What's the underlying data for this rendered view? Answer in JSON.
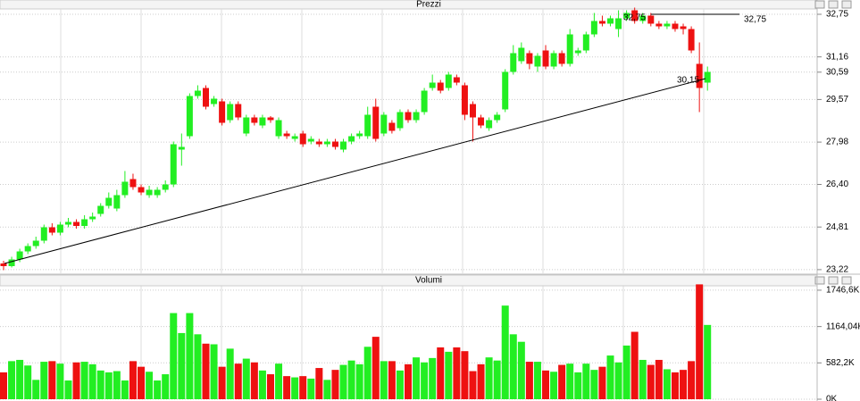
{
  "chart_data": [
    {
      "type": "candlestick",
      "title": "Prezzi",
      "open": [
        23.45,
        23.35,
        23.6,
        23.9,
        24.1,
        24.3,
        24.8,
        24.6,
        24.9,
        25.0,
        24.85,
        25.1,
        25.3,
        25.6,
        25.5,
        26.0,
        26.6,
        26.3,
        26.0,
        26.0,
        26.2,
        26.4,
        27.7,
        28.2,
        29.7,
        30.0,
        29.4,
        29.5,
        28.8,
        29.4,
        28.3,
        28.9,
        28.6,
        28.9,
        28.2,
        28.3,
        28.1,
        28.3,
        28.0,
        28.0,
        27.9,
        28.0,
        27.7,
        28.0,
        28.2,
        28.2,
        29.3,
        28.3,
        28.7,
        28.5,
        29.1,
        28.8,
        29.1,
        30.0,
        30.2,
        30.0,
        30.4,
        30.1,
        29.4,
        28.9,
        28.5,
        28.8,
        29.2,
        30.6,
        31.0,
        31.3,
        30.8,
        31.4,
        30.8,
        31.3,
        30.9,
        31.3,
        31.4,
        32.0,
        32.5,
        32.4,
        32.2,
        32.6,
        32.9,
        32.5,
        32.7,
        32.4,
        32.3,
        32.4,
        32.3,
        32.2,
        30.9,
        30.2
      ],
      "high": [
        23.55,
        23.7,
        24.0,
        24.2,
        24.45,
        24.9,
        24.95,
        25.0,
        25.15,
        25.1,
        25.25,
        25.35,
        25.7,
        26.1,
        26.2,
        26.9,
        26.8,
        26.4,
        26.35,
        26.3,
        26.55,
        28.0,
        28.3,
        29.8,
        30.1,
        30.1,
        29.7,
        29.6,
        29.5,
        29.5,
        29.0,
        29.0,
        29.0,
        28.95,
        28.9,
        28.4,
        28.3,
        28.4,
        28.2,
        28.1,
        28.1,
        28.1,
        28.1,
        28.3,
        28.4,
        29.3,
        29.6,
        29.1,
        28.8,
        29.2,
        29.2,
        29.2,
        30.0,
        30.5,
        30.3,
        30.6,
        30.5,
        30.2,
        29.5,
        29.0,
        28.9,
        29.1,
        30.7,
        31.6,
        31.7,
        31.4,
        31.3,
        31.6,
        31.4,
        31.4,
        32.2,
        31.5,
        32.1,
        32.8,
        32.7,
        32.7,
        32.9,
        32.9,
        33.0,
        32.8,
        32.8,
        32.5,
        32.5,
        32.5,
        32.4,
        32.3,
        31.7,
        30.8
      ],
      "low": [
        23.2,
        23.3,
        23.5,
        23.8,
        24.0,
        24.2,
        24.5,
        24.5,
        24.8,
        24.75,
        24.75,
        25.0,
        25.2,
        25.5,
        25.4,
        25.9,
        26.2,
        26.0,
        25.9,
        25.9,
        26.1,
        26.3,
        27.1,
        28.1,
        29.6,
        29.2,
        29.3,
        28.6,
        28.7,
        28.8,
        28.2,
        28.6,
        28.5,
        28.7,
        28.1,
        28.1,
        28.0,
        27.8,
        27.9,
        27.8,
        27.8,
        27.7,
        27.6,
        27.9,
        28.1,
        28.1,
        28.0,
        28.2,
        28.3,
        28.4,
        28.7,
        28.7,
        29.0,
        29.9,
        29.8,
        29.9,
        30.1,
        28.8,
        28.0,
        28.5,
        28.4,
        28.7,
        29.1,
        30.5,
        30.9,
        30.7,
        30.6,
        30.7,
        30.7,
        30.8,
        30.8,
        31.2,
        31.3,
        31.9,
        32.3,
        32.3,
        31.9,
        32.5,
        32.4,
        32.4,
        32.3,
        32.2,
        32.2,
        32.1,
        32.0,
        31.3,
        29.1,
        29.9
      ],
      "close": [
        23.35,
        23.6,
        23.9,
        24.1,
        24.3,
        24.8,
        24.6,
        24.9,
        25.0,
        24.85,
        25.1,
        25.2,
        25.6,
        25.9,
        26.0,
        26.5,
        26.3,
        26.1,
        26.2,
        26.2,
        26.4,
        27.9,
        27.8,
        29.7,
        29.9,
        29.3,
        29.6,
        28.7,
        29.4,
        28.9,
        28.9,
        28.7,
        28.9,
        28.8,
        28.8,
        28.2,
        28.2,
        27.9,
        28.1,
        27.9,
        28.0,
        27.8,
        28.0,
        28.2,
        28.3,
        29.0,
        28.1,
        29.0,
        28.4,
        29.1,
        28.8,
        29.1,
        29.9,
        30.2,
        29.9,
        30.5,
        30.2,
        29.0,
        28.9,
        28.6,
        28.8,
        29.0,
        30.6,
        31.3,
        31.5,
        30.9,
        31.2,
        30.8,
        31.3,
        30.9,
        32.0,
        31.4,
        32.0,
        32.5,
        32.4,
        32.6,
        32.6,
        32.8,
        32.5,
        32.7,
        32.4,
        32.3,
        32.4,
        32.2,
        32.2,
        31.4,
        30.0,
        30.6
      ],
      "up_color": "#22ee22",
      "down_color": "#ee1111",
      "ylim": [
        23.05,
        32.95
      ],
      "yticks": [
        {
          "value": 23.22,
          "label": "23,22"
        },
        {
          "value": 24.81,
          "label": "24,81"
        },
        {
          "value": 26.4,
          "label": "26,40"
        },
        {
          "value": 27.98,
          "label": "27,98"
        },
        {
          "value": 29.57,
          "label": "29,57"
        },
        {
          "value": 30.59,
          "label": "30,59"
        },
        {
          "value": 31.16,
          "label": "31,16"
        },
        {
          "value": 32.75,
          "label": "32,75"
        }
      ],
      "level": {
        "value": 32.75,
        "label": "32,75"
      },
      "trendline_label": {
        "value": 30.15,
        "label": "30,15"
      },
      "grid": true
    },
    {
      "type": "bar",
      "title": "Volumi",
      "values": [
        430,
        610,
        630,
        540,
        310,
        600,
        610,
        570,
        300,
        590,
        600,
        560,
        460,
        430,
        450,
        300,
        610,
        520,
        440,
        300,
        400,
        1380,
        1060,
        1380,
        1040,
        890,
        880,
        520,
        810,
        570,
        650,
        590,
        460,
        400,
        570,
        370,
        350,
        370,
        330,
        500,
        310,
        470,
        550,
        620,
        560,
        840,
        1000,
        610,
        610,
        460,
        560,
        670,
        590,
        660,
        830,
        760,
        830,
        770,
        450,
        560,
        670,
        620,
        1500,
        1040,
        920,
        600,
        600,
        460,
        440,
        550,
        570,
        430,
        570,
        470,
        520,
        700,
        590,
        860,
        1080,
        630,
        550,
        630,
        480,
        430,
        470,
        610,
        1840,
        1190
      ],
      "ylim": [
        0,
        1810
      ],
      "yticks": [
        {
          "value": 0,
          "label": "0K"
        },
        {
          "value": 582.2,
          "label": "582,2K"
        },
        {
          "value": 1164.04,
          "label": "1164,04K"
        },
        {
          "value": 1746.6,
          "label": "1746,6K"
        }
      ],
      "grid": true
    }
  ]
}
